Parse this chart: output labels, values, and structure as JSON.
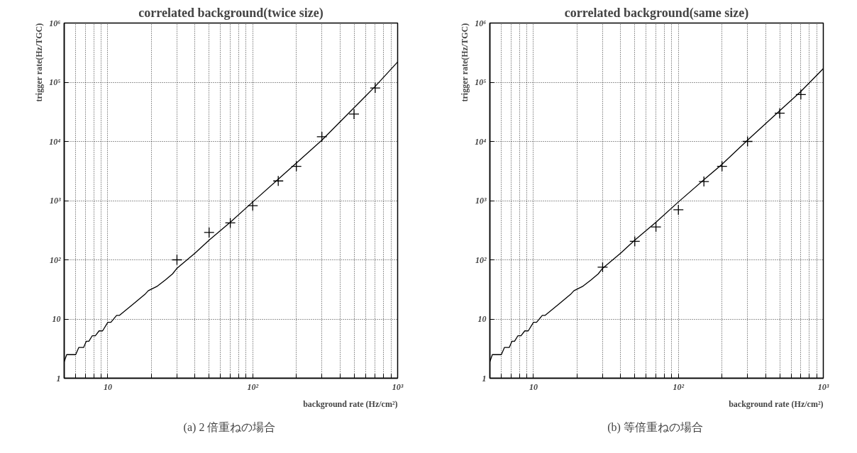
{
  "chart_data": [
    {
      "type": "scatter",
      "title": "correlated background(twice size)",
      "xlabel": "background rate (Hz/cm²)",
      "ylabel": "trigger rate(Hz/TGC)",
      "annotations": [
        "(a)  2 倍重ねの場合"
      ],
      "log": "xy",
      "grid": true,
      "xlim": [
        5,
        1000
      ],
      "ylim": [
        1,
        1000000
      ],
      "xticks": [
        {
          "value": 6,
          "label": null
        },
        {
          "value": 7,
          "label": null
        },
        {
          "value": 8,
          "label": null
        },
        {
          "value": 9,
          "label": null
        },
        10,
        {
          "value": 20,
          "label": null
        },
        {
          "value": 30,
          "label": null
        },
        {
          "value": 40,
          "label": null
        },
        {
          "value": 50,
          "label": null
        },
        {
          "value": 60,
          "label": null
        },
        {
          "value": 70,
          "label": null
        },
        {
          "value": 80,
          "label": null
        },
        {
          "value": 90,
          "label": null
        },
        {
          "value": 100,
          "label": "10²"
        },
        {
          "value": 200,
          "label": null
        },
        {
          "value": 300,
          "label": null
        },
        {
          "value": 400,
          "label": null
        },
        {
          "value": 500,
          "label": null
        },
        {
          "value": 600,
          "label": null
        },
        {
          "value": 700,
          "label": null
        },
        {
          "value": 800,
          "label": null
        },
        {
          "value": 900,
          "label": null
        },
        {
          "value": 1000,
          "label": "10³"
        }
      ],
      "yticks": [
        1,
        10,
        {
          "value": 100,
          "label": "10²"
        },
        {
          "value": 1000,
          "label": "10³"
        },
        {
          "value": 10000,
          "label": "10⁴"
        },
        {
          "value": 100000,
          "label": "10⁵"
        },
        {
          "value": 1000000,
          "label": "10⁶"
        }
      ],
      "series": [
        {
          "marker": "cross",
          "color": "#000000",
          "x": [
            30,
            50,
            70,
            100,
            150,
            200,
            300,
            500,
            700
          ],
          "values": [
            100,
            290,
            420,
            820,
            2150,
            3800,
            12000,
            29000,
            80000
          ]
        },
        {
          "type": "line",
          "color": "#000000",
          "x": [
            5,
            5.2,
            6,
            6.3,
            6.8,
            7.1,
            7.4,
            7.8,
            8.2,
            8.7,
            9.2,
            10,
            10.5,
            11.5,
            12,
            15,
            18,
            19,
            22,
            25,
            28,
            30,
            40,
            50,
            70,
            100,
            150,
            200,
            300,
            500,
            700,
            1000
          ],
          "values": [
            1.9,
            2.5,
            2.5,
            3.3,
            3.3,
            4.2,
            4.2,
            5.2,
            5.2,
            6.3,
            6.3,
            8.8,
            8.8,
            11.5,
            11.5,
            18,
            26,
            30,
            36,
            46,
            58,
            72,
            130,
            215,
            430,
            950,
            2300,
            4300,
            10500,
            37000,
            85000,
            220000
          ]
        }
      ]
    },
    {
      "type": "scatter",
      "title": "correlated background(same size)",
      "xlabel": "background rate (Hz/cm²)",
      "ylabel": "trigger rate(Hz/TGC)",
      "annotations": [
        "(b)  等倍重ねの場合"
      ],
      "log": "xy",
      "grid": true,
      "xlim": [
        5,
        1000
      ],
      "ylim": [
        1,
        1000000
      ],
      "xticks": [
        {
          "value": 6,
          "label": null
        },
        {
          "value": 7,
          "label": null
        },
        {
          "value": 8,
          "label": null
        },
        {
          "value": 9,
          "label": null
        },
        10,
        {
          "value": 20,
          "label": null
        },
        {
          "value": 30,
          "label": null
        },
        {
          "value": 40,
          "label": null
        },
        {
          "value": 50,
          "label": null
        },
        {
          "value": 60,
          "label": null
        },
        {
          "value": 70,
          "label": null
        },
        {
          "value": 80,
          "label": null
        },
        {
          "value": 90,
          "label": null
        },
        {
          "value": 100,
          "label": "10²"
        },
        {
          "value": 200,
          "label": null
        },
        {
          "value": 300,
          "label": null
        },
        {
          "value": 400,
          "label": null
        },
        {
          "value": 500,
          "label": null
        },
        {
          "value": 600,
          "label": null
        },
        {
          "value": 700,
          "label": null
        },
        {
          "value": 800,
          "label": null
        },
        {
          "value": 900,
          "label": null
        },
        {
          "value": 1000,
          "label": "10³"
        }
      ],
      "yticks": [
        1,
        10,
        {
          "value": 100,
          "label": "10²"
        },
        {
          "value": 1000,
          "label": "10³"
        },
        {
          "value": 10000,
          "label": "10⁴"
        },
        {
          "value": 100000,
          "label": "10⁵"
        },
        {
          "value": 1000000,
          "label": "10⁶"
        }
      ],
      "series": [
        {
          "marker": "cross",
          "color": "#000000",
          "x": [
            30,
            50,
            70,
            100,
            150,
            200,
            300,
            500,
            700
          ],
          "values": [
            75,
            205,
            360,
            700,
            2100,
            3800,
            10000,
            30000,
            62000
          ]
        },
        {
          "type": "line",
          "color": "#000000",
          "x": [
            5,
            5.2,
            6,
            6.3,
            6.8,
            7.1,
            7.4,
            7.8,
            8.2,
            8.7,
            9.2,
            10,
            10.5,
            11.5,
            12,
            15,
            18,
            19,
            22,
            25,
            28,
            30,
            40,
            50,
            70,
            100,
            150,
            200,
            300,
            500,
            700,
            1000
          ],
          "values": [
            1.9,
            2.5,
            2.5,
            3.3,
            3.3,
            4.2,
            4.2,
            5.2,
            5.2,
            6.3,
            6.3,
            8.8,
            8.8,
            11.5,
            11.5,
            18,
            26,
            30,
            36,
            46,
            58,
            72,
            130,
            215,
            430,
            950,
            2250,
            4100,
            10500,
            33000,
            70000,
            170000
          ]
        }
      ]
    }
  ]
}
